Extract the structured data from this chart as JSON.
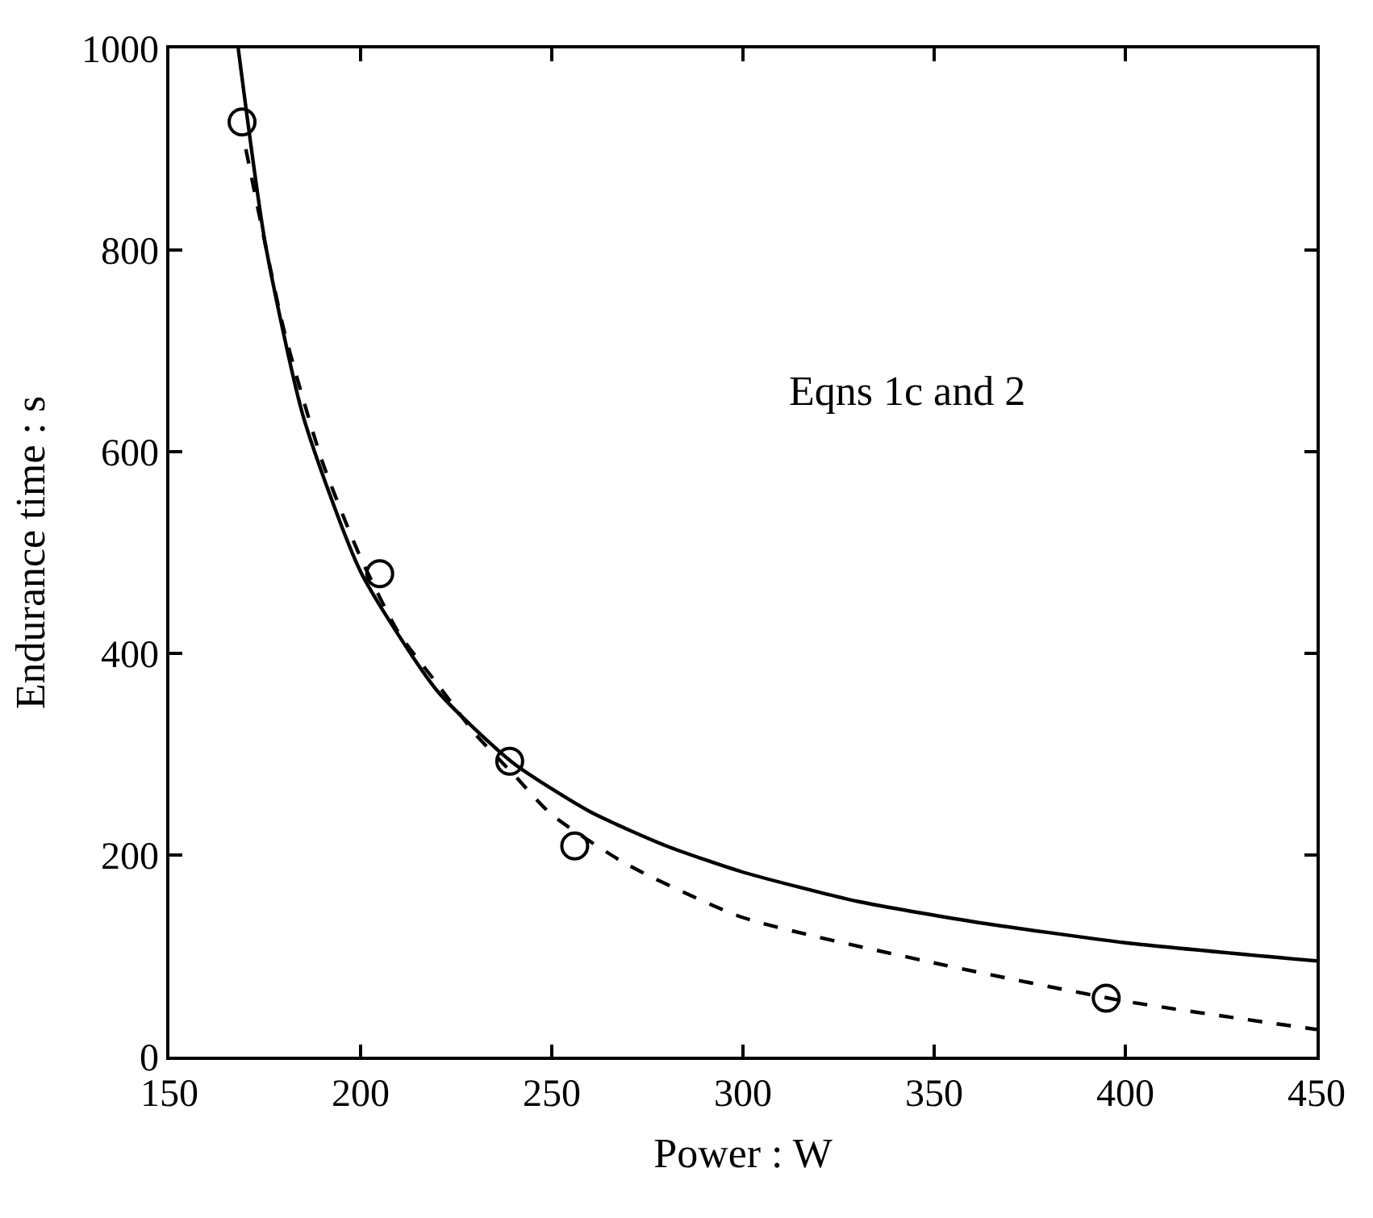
{
  "chart_data": {
    "type": "line",
    "xlabel": "Power : W",
    "ylabel": "Endurance time : s",
    "xlim": [
      150,
      450
    ],
    "ylim": [
      0,
      1000
    ],
    "xticks": [
      150,
      200,
      250,
      300,
      350,
      400,
      450
    ],
    "yticks": [
      0,
      200,
      400,
      600,
      800,
      1000
    ],
    "annotations": [
      "Eqns 1c and 2"
    ],
    "series": [
      {
        "color": "#000000",
        "line_style": "solid",
        "marker": "none",
        "x": [
          168,
          175,
          185,
          200,
          220,
          240,
          260,
          280,
          300,
          330,
          360,
          400,
          450
        ],
        "values": [
          1000,
          808,
          635,
          481,
          363,
          291,
          243,
          209,
          183,
          154,
          134,
          113,
          95
        ]
      },
      {
        "color": "#000000",
        "line_style": "dashed",
        "marker": "none",
        "x": [
          170,
          180,
          190,
          200,
          210,
          220,
          230,
          240,
          250,
          270,
          300,
          350,
          400,
          450
        ],
        "values": [
          900,
          720,
          590,
          495,
          420,
          370,
          320,
          280,
          240,
          190,
          138,
          93,
          55,
          27
        ]
      },
      {
        "type": "scatter",
        "color": "#000000",
        "marker": "circle",
        "x": [
          169,
          205,
          239,
          256,
          395
        ],
        "values": [
          927,
          479,
          293,
          209,
          58
        ]
      }
    ]
  }
}
